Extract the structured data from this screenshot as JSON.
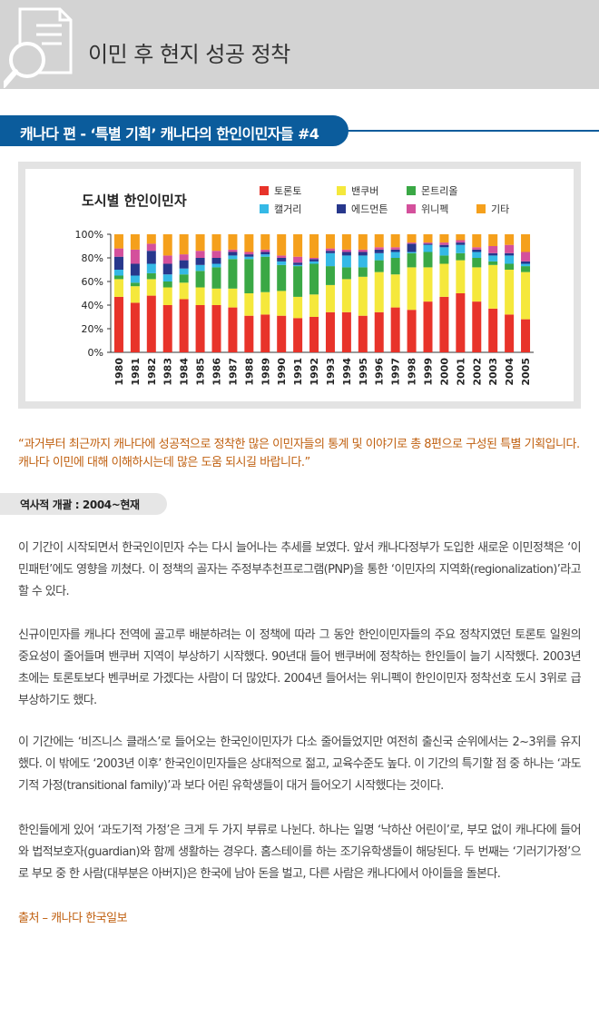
{
  "header": {
    "title": "이민 후 현지 성공 정착"
  },
  "banner": {
    "title": "캐나다 편 - ‘특별 기획’ 캐나다의 한인이민자들 #4"
  },
  "chart_data": {
    "type": "bar",
    "stacked": true,
    "title": "도시별 한인이민자",
    "yticks": [
      "0%",
      "20%",
      "40%",
      "60%",
      "80%",
      "100%"
    ],
    "ylim": [
      0,
      100
    ],
    "categories": [
      "1980",
      "1981",
      "1982",
      "1983",
      "1984",
      "1985",
      "1986",
      "1987",
      "1988",
      "1989",
      "1990",
      "1991",
      "1992",
      "1993",
      "1994",
      "1995",
      "1996",
      "1997",
      "1998",
      "1999",
      "2000",
      "2001",
      "2002",
      "2003",
      "2004",
      "2005"
    ],
    "series": [
      {
        "name": "토론토",
        "color": "#e8332a",
        "values": [
          47,
          42,
          48,
          40,
          45,
          40,
          40,
          38,
          31,
          32,
          31,
          29,
          30,
          34,
          34,
          31,
          34,
          38,
          36,
          43,
          47,
          50,
          43,
          37,
          32,
          28
        ]
      },
      {
        "name": "밴쿠버",
        "color": "#f5e83c",
        "values": [
          15,
          14,
          14,
          15,
          14,
          15,
          14,
          16,
          19,
          19,
          21,
          18,
          19,
          23,
          28,
          33,
          34,
          28,
          36,
          29,
          28,
          28,
          29,
          37,
          38,
          40
        ]
      },
      {
        "name": "몬트리올",
        "color": "#3aa845",
        "values": [
          3,
          3,
          5,
          5,
          7,
          14,
          18,
          25,
          29,
          30,
          22,
          26,
          26,
          16,
          10,
          8,
          10,
          14,
          12,
          13,
          7,
          6,
          8,
          3,
          5,
          5
        ]
      },
      {
        "name": "캘거리",
        "color": "#35b9e6",
        "values": [
          5,
          6,
          8,
          6,
          5,
          5,
          3,
          3,
          2,
          2,
          3,
          1,
          2,
          11,
          10,
          10,
          6,
          5,
          1,
          6,
          7,
          7,
          5,
          5,
          7,
          2
        ]
      },
      {
        "name": "에드먼튼",
        "color": "#27378c",
        "values": [
          11,
          10,
          11,
          9,
          7,
          6,
          5,
          3,
          2,
          2,
          3,
          2,
          2,
          2,
          3,
          3,
          3,
          2,
          7,
          1,
          2,
          2,
          2,
          2,
          2,
          2
        ]
      },
      {
        "name": "위니펙",
        "color": "#d4509c",
        "values": [
          7,
          12,
          6,
          7,
          5,
          6,
          6,
          2,
          2,
          2,
          2,
          5,
          1,
          2,
          2,
          2,
          2,
          2,
          1,
          1,
          2,
          2,
          2,
          6,
          7,
          8
        ]
      },
      {
        "name": "기타",
        "color": "#f5a01c",
        "values": [
          12,
          13,
          8,
          18,
          17,
          14,
          14,
          13,
          15,
          13,
          18,
          19,
          20,
          12,
          13,
          13,
          11,
          11,
          7,
          7,
          7,
          5,
          11,
          10,
          9,
          15
        ]
      }
    ],
    "legend_placement": "top",
    "grid": false
  },
  "quote": "“과거부터 최근까지 캐나다에 성공적으로 정착한 많은 이민자들의 통계 및 이야기로 총 8편으로 구성된 특별 기획입니다. 캐나다 이민에 대해 이해하시는데 많은 도움 되시길 바랍니다.”",
  "section": {
    "label": "역사적 개괄 : 2004~현재"
  },
  "paragraphs": {
    "p1": "이 기간이 시작되면서 한국인이민자 수는 다시 늘어나는 추세를 보였다. 앞서 캐나다정부가 도입한 새로운 이민정책은 ‘이민패턴’에도 영향을 끼쳤다. 이 정책의 골자는 주정부추천프로그램(PNP)을 통한 ‘이민자의 지역화(regionalization)’라고 할 수 있다.",
    "p2": "신규이민자를 캐나다 전역에 골고루 배분하려는 이 정책에 따라 그 동안 한인이민자들의 주요 정착지였던 토론토 일원의 중요성이 줄어들며 밴쿠버 지역이 부상하기 시작했다. 90년대 들어 밴쿠버에 정착하는 한인들이 늘기 시작했다. 2003년 초에는 토론토보다 벤쿠버로 가겠다는 사람이 더 많았다. 2004년 들어서는 위니펙이 한인이민자 정착선호 도시 3위로 급부상하기도 했다.",
    "p3": "이 기간에는 ‘비즈니스 클래스’로 들어오는 한국인이민자가 다소 줄어들었지만 여전히 출신국 순위에서는 2~3위를 유지했다. 이 밖에도 ‘2003년 이후’ 한국인이민자들은 상대적으로 젊고, 교육수준도 높다. 이 기간의 특기할 점 중 하나는 ‘과도기적 가정(transitional family)’과 보다 어린 유학생들이 대거 들어오기 시작했다는 것이다.",
    "p4": "한인들에게 있어 ‘과도기적 가정’은 크게 두 가지 부류로 나뉜다. 하나는 일명 ‘낙하산 어린이’로, 부모 없이 캐나다에 들어와 법적보호자(guardian)와 함께 생활하는 경우다. 홈스테이를 하는 조기유학생들이 해당된다. 두 번째는 ‘기러기가정’으로 부모 중 한 사람(대부분은 아버지)은 한국에 남아 돈을 벌고, 다른 사람은 캐나다에서 아이들을 돌본다."
  },
  "source": "출처 – 캐나다 한국일보",
  "icons": {
    "header": "document-search-icon"
  }
}
